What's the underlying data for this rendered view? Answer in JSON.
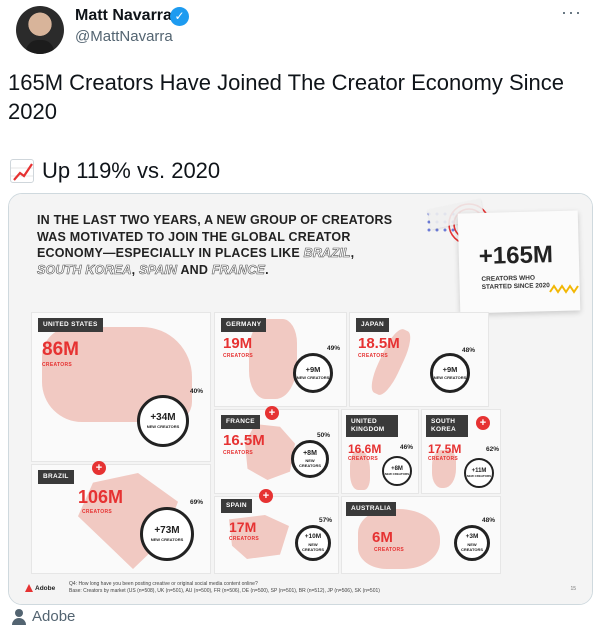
{
  "author": {
    "display_name": "Matt Navarra",
    "handle": "@MattNavarra",
    "verified_icon": "verified-badge-icon"
  },
  "more_label": "···",
  "tweet": {
    "text": "165M Creators Have Joined The Creator Economy Since 2020",
    "stat_icon": "chart-increasing-icon",
    "stat_text": "Up 119% vs. 2020"
  },
  "infographic": {
    "headline_main": "IN THE LAST TWO YEARS, A NEW GROUP OF CREATORS WAS MOTIVATED TO JOIN THE GLOBAL CREATOR ECONOMY—ESPECIALLY IN PLACES LIKE",
    "headline_places": [
      "BRAZIL",
      "SOUTH KOREA",
      "SPAIN"
    ],
    "headline_and": "AND",
    "headline_last": "FRANCE",
    "callout": {
      "value": "+165M",
      "label": "CREATORS WHO STARTED SINCE 2020"
    },
    "countries": [
      {
        "name": "UNITED STATES",
        "total": "86M",
        "total_label": "CREATORS",
        "new": "+34M",
        "new_label": "NEW CREATORS",
        "pct": "40%",
        "highlight": false
      },
      {
        "name": "GERMANY",
        "total": "19M",
        "total_label": "CREATORS",
        "new": "+9M",
        "new_label": "NEW CREATORS",
        "pct": "49%",
        "highlight": false
      },
      {
        "name": "JAPAN",
        "total": "18.5M",
        "total_label": "CREATORS",
        "new": "+9M",
        "new_label": "NEW CREATORS",
        "pct": "48%",
        "highlight": false
      },
      {
        "name": "FRANCE",
        "total": "16.5M",
        "total_label": "CREATORS",
        "new": "+8M",
        "new_label": "NEW CREATORS",
        "pct": "50%",
        "highlight": true
      },
      {
        "name": "UNITED KINGDOM",
        "total": "16.6M",
        "total_label": "CREATORS",
        "new": "+8M",
        "new_label": "NEW CREATORS",
        "pct": "46%",
        "highlight": false
      },
      {
        "name": "SOUTH KOREA",
        "total": "17.5M",
        "total_label": "CREATORS",
        "new": "+11M",
        "new_label": "NEW CREATORS",
        "pct": "62%",
        "highlight": true
      },
      {
        "name": "BRAZIL",
        "total": "106M",
        "total_label": "CREATORS",
        "new": "+73M",
        "new_label": "NEW CREATORS",
        "pct": "69%",
        "highlight": true
      },
      {
        "name": "SPAIN",
        "total": "17M",
        "total_label": "CREATORS",
        "new": "+10M",
        "new_label": "NEW CREATORS",
        "pct": "57%",
        "highlight": true
      },
      {
        "name": "AUSTRALIA",
        "total": "6M",
        "total_label": "CREATORS",
        "new": "+3M",
        "new_label": "NEW CREATORS",
        "pct": "48%",
        "highlight": false
      }
    ],
    "badge_plus": "+",
    "footnote_q": "Q4: How long have you been posting creative or original social media content online?",
    "footnote_base": "Base: Creators by market (US (n=508), UK (n=501), AU (n=500), FR (n=506), DE (n=500), SP (n=501), BR (n=512), JP (n=506), SK (n=501)",
    "brand": "Adobe",
    "page_number": "15"
  },
  "attribution": {
    "icon": "person-icon",
    "label": "Adobe"
  },
  "colors": {
    "accent_red": "#e63232",
    "map_pink": "#f1c9c2",
    "twitter_blue": "#1d9bf0"
  }
}
